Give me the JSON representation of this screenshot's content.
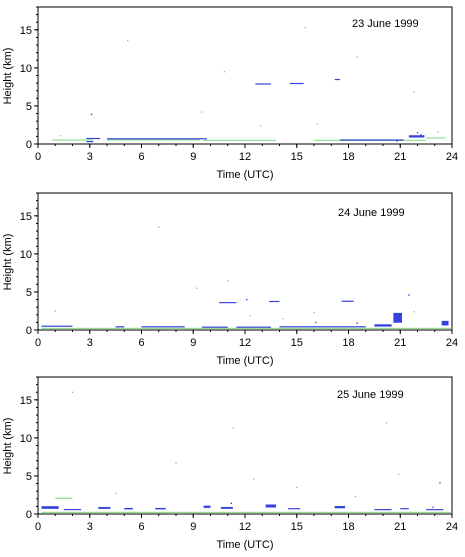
{
  "colors": {
    "cloud": "#1f2fd8",
    "faint": "#6dd36d",
    "axis": "#000000"
  },
  "chart_data": [
    {
      "type": "scatter",
      "annotation": "23 June 1999",
      "xlabel": "Time (UTC)",
      "ylabel": "Height (km)",
      "xlim": [
        0,
        24
      ],
      "ylim": [
        0,
        18
      ],
      "xticks": [
        "0",
        "3",
        "6",
        "9",
        "12",
        "15",
        "18",
        "21",
        "24"
      ],
      "yticks": [
        "0",
        "5",
        "10",
        "15"
      ],
      "grid": false,
      "series": [
        {
          "kind": "layer",
          "color_key": "faint",
          "segments": [
            [
              0.8,
              3.2,
              0.55,
              0.1
            ],
            [
              4.0,
              9.4,
              0.55,
              0.1
            ],
            [
              9.6,
              13.8,
              0.5,
              0.1
            ],
            [
              16.0,
              22.5,
              0.5,
              0.1
            ],
            [
              22.5,
              23.6,
              0.8,
              0.15
            ]
          ]
        },
        {
          "kind": "layer",
          "color_key": "cloud",
          "segments": [
            [
              2.8,
              3.6,
              0.75,
              0.1
            ],
            [
              4.0,
              9.8,
              0.7,
              0.12
            ],
            [
              12.6,
              13.5,
              7.9,
              0.12
            ],
            [
              14.6,
              15.4,
              7.95,
              0.15
            ],
            [
              17.2,
              17.5,
              8.5,
              0.1
            ],
            [
              17.5,
              21.2,
              0.55,
              0.1
            ],
            [
              21.5,
              22.4,
              1.0,
              0.3
            ],
            [
              2.8,
              3.2,
              0.35,
              0.08
            ]
          ]
        },
        {
          "kind": "points",
          "color_key": "cloud",
          "points": [
            [
              3.1,
              3.9
            ],
            [
              22.0,
              1.5
            ],
            [
              22.2,
              1.2
            ],
            [
              20.8,
              0.4
            ]
          ]
        },
        {
          "kind": "points",
          "color_key": "faint",
          "points": [
            [
              1.3,
              1.1
            ],
            [
              12.9,
              2.4
            ],
            [
              16.2,
              2.6
            ],
            [
              9.5,
              4.2
            ],
            [
              18.5,
              11.4
            ],
            [
              23.2,
              1.6
            ],
            [
              15.5,
              15.3
            ],
            [
              5.2,
              13.6
            ],
            [
              21.8,
              6.8
            ],
            [
              10.8,
              9.5
            ]
          ]
        }
      ]
    },
    {
      "type": "scatter",
      "annotation": "24 June 1999",
      "xlabel": "Time (UTC)",
      "ylabel": "Height (km)",
      "xlim": [
        0,
        24
      ],
      "ylim": [
        0,
        18
      ],
      "xticks": [
        "0",
        "3",
        "6",
        "9",
        "12",
        "15",
        "18",
        "21",
        "24"
      ],
      "yticks": [
        "0",
        "5",
        "10",
        "15"
      ],
      "grid": false,
      "series": [
        {
          "kind": "layer",
          "color_key": "faint",
          "segments": [
            [
              0.2,
              24.0,
              0.25,
              0.08
            ]
          ]
        },
        {
          "kind": "layer",
          "color_key": "cloud",
          "segments": [
            [
              0.2,
              2.0,
              0.5,
              0.15
            ],
            [
              4.5,
              5.0,
              0.45,
              0.1
            ],
            [
              6.0,
              8.5,
              0.45,
              0.1
            ],
            [
              10.5,
              11.5,
              3.6,
              0.15
            ],
            [
              13.4,
              14.0,
              3.75,
              0.15
            ],
            [
              17.6,
              18.3,
              3.8,
              0.12
            ],
            [
              9.5,
              11.0,
              0.4,
              0.1
            ],
            [
              11.5,
              13.5,
              0.4,
              0.1
            ],
            [
              14.0,
              19.0,
              0.45,
              0.1
            ],
            [
              19.5,
              20.5,
              0.6,
              0.3
            ],
            [
              20.6,
              21.1,
              1.6,
              1.3
            ],
            [
              23.4,
              23.8,
              0.9,
              0.6
            ]
          ]
        },
        {
          "kind": "points",
          "color_key": "cloud",
          "points": [
            [
              12.1,
              4.0
            ],
            [
              21.5,
              4.6
            ],
            [
              16.1,
              1.0
            ],
            [
              18.5,
              0.9
            ]
          ]
        },
        {
          "kind": "points",
          "color_key": "faint",
          "points": [
            [
              1.0,
              2.5
            ],
            [
              11.0,
              6.5
            ],
            [
              12.3,
              1.9
            ],
            [
              14.2,
              1.5
            ],
            [
              16.0,
              2.3
            ],
            [
              21.8,
              2.4
            ],
            [
              7.0,
              13.5
            ],
            [
              19.0,
              15.0
            ],
            [
              9.2,
              5.5
            ]
          ]
        }
      ]
    },
    {
      "type": "scatter",
      "annotation": "25 June 1999",
      "xlabel": "Time (UTC)",
      "ylabel": "Height (km)",
      "xlim": [
        0,
        24
      ],
      "ylim": [
        0,
        18
      ],
      "xticks": [
        "0",
        "3",
        "6",
        "9",
        "12",
        "15",
        "18",
        "21",
        "24"
      ],
      "yticks": [
        "0",
        "5",
        "10",
        "15"
      ],
      "grid": false,
      "series": [
        {
          "kind": "layer",
          "color_key": "faint",
          "segments": [
            [
              0.2,
              24.0,
              0.25,
              0.08
            ],
            [
              1.0,
              2.0,
              2.1,
              0.1
            ]
          ]
        },
        {
          "kind": "layer",
          "color_key": "cloud",
          "segments": [
            [
              0.2,
              1.2,
              0.85,
              0.35
            ],
            [
              1.5,
              2.5,
              0.6,
              0.12
            ],
            [
              3.5,
              4.2,
              0.8,
              0.25
            ],
            [
              5.0,
              5.5,
              0.7,
              0.2
            ],
            [
              6.8,
              7.4,
              0.7,
              0.2
            ],
            [
              9.6,
              10.0,
              0.95,
              0.3
            ],
            [
              10.6,
              11.3,
              0.8,
              0.25
            ],
            [
              13.2,
              13.8,
              1.05,
              0.4
            ],
            [
              14.5,
              15.2,
              0.7,
              0.15
            ],
            [
              17.2,
              17.8,
              0.9,
              0.3
            ],
            [
              19.5,
              20.5,
              0.6,
              0.1
            ],
            [
              21.0,
              21.5,
              0.7,
              0.15
            ],
            [
              22.5,
              23.5,
              0.6,
              0.1
            ]
          ]
        },
        {
          "kind": "points",
          "color_key": "cloud",
          "points": [
            [
              23.3,
              4.1
            ],
            [
              22.9,
              0.9
            ],
            [
              11.2,
              1.4
            ]
          ]
        },
        {
          "kind": "points",
          "color_key": "faint",
          "points": [
            [
              4.5,
              2.7
            ],
            [
              12.5,
              4.6
            ],
            [
              15.0,
              3.5
            ],
            [
              20.9,
              5.2
            ],
            [
              11.3,
              11.3
            ],
            [
              20.2,
              12.0
            ],
            [
              8.0,
              6.7
            ],
            [
              18.4,
              2.3
            ],
            [
              2.0,
              16.0
            ]
          ]
        }
      ]
    }
  ]
}
